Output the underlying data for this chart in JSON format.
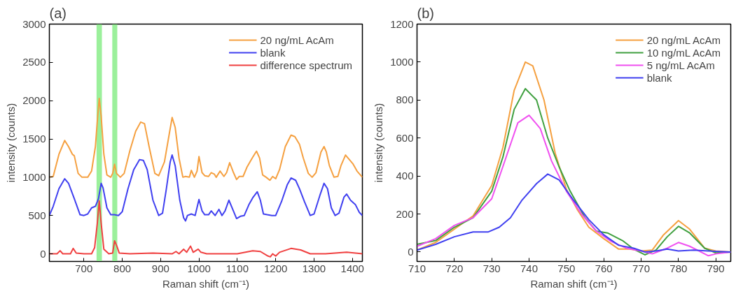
{
  "chart_data": [
    {
      "type": "line",
      "title": "(a)",
      "xlabel": "Raman shift (cm⁻¹)",
      "ylabel": "intensity (counts)",
      "xlim": [
        610,
        1426
      ],
      "ylim": [
        -100,
        3000
      ],
      "xticks": [
        700,
        800,
        900,
        1000,
        1100,
        1200,
        1300,
        1400
      ],
      "yticks": [
        0,
        500,
        1000,
        1500,
        2000,
        2500,
        3000
      ],
      "grid": false,
      "legend": "top right",
      "line_style": "solid",
      "marker": "none",
      "bands": [
        {
          "axis": "x",
          "from": 733,
          "to": 747,
          "label": null,
          "color": "#90ee90"
        },
        {
          "axis": "x",
          "from": 774,
          "to": 787,
          "label": null,
          "color": "#90ee90"
        }
      ],
      "series": [
        {
          "name": "20 ng/mL AcAm",
          "color": "#f5a040",
          "x": [
            610,
            620,
            635,
            650,
            660,
            670,
            675,
            685,
            695,
            710,
            720,
            730,
            736,
            740,
            745,
            752,
            760,
            770,
            775,
            780,
            785,
            795,
            805,
            820,
            835,
            848,
            858,
            870,
            885,
            895,
            910,
            922,
            930,
            938,
            948,
            958,
            965,
            975,
            980,
            988,
            995,
            1000,
            1008,
            1015,
            1025,
            1032,
            1040,
            1045,
            1055,
            1065,
            1072,
            1080,
            1090,
            1098,
            1105,
            1115,
            1125,
            1140,
            1150,
            1158,
            1166,
            1175,
            1185,
            1192,
            1200,
            1210,
            1225,
            1240,
            1250,
            1262,
            1272,
            1285,
            1295,
            1305,
            1318,
            1326,
            1332,
            1340,
            1352,
            1362,
            1370,
            1382,
            1392,
            1402,
            1412,
            1426
          ],
          "values": [
            1000,
            1010,
            1300,
            1480,
            1400,
            1300,
            1280,
            1050,
            1000,
            1000,
            1080,
            1400,
            1800,
            2030,
            1800,
            1300,
            1030,
            1000,
            1050,
            1170,
            1050,
            1000,
            1050,
            1350,
            1600,
            1720,
            1700,
            1400,
            1050,
            1020,
            1200,
            1550,
            1780,
            1650,
            1250,
            1000,
            1010,
            1000,
            1090,
            1000,
            1080,
            1270,
            1060,
            1020,
            1010,
            1060,
            1040,
            1000,
            1080,
            1010,
            1060,
            1190,
            1060,
            970,
            1010,
            1010,
            1130,
            1260,
            1340,
            1250,
            1030,
            1000,
            960,
            1010,
            980,
            1100,
            1400,
            1550,
            1530,
            1430,
            1250,
            1050,
            1000,
            1060,
            1330,
            1400,
            1330,
            1150,
            1000,
            1010,
            1150,
            1290,
            1230,
            1170,
            1080,
            1000
          ]
        },
        {
          "name": "blank",
          "color": "#4040f0",
          "x": [
            610,
            620,
            635,
            650,
            660,
            675,
            690,
            700,
            710,
            720,
            730,
            738,
            745,
            750,
            760,
            770,
            780,
            790,
            800,
            815,
            830,
            845,
            855,
            865,
            880,
            895,
            905,
            915,
            925,
            930,
            938,
            950,
            960,
            965,
            970,
            980,
            990,
            1000,
            1008,
            1015,
            1025,
            1032,
            1042,
            1052,
            1060,
            1068,
            1078,
            1088,
            1098,
            1108,
            1118,
            1130,
            1140,
            1152,
            1160,
            1168,
            1178,
            1190,
            1200,
            1215,
            1230,
            1240,
            1252,
            1262,
            1275,
            1290,
            1300,
            1315,
            1326,
            1335,
            1345,
            1355,
            1365,
            1378,
            1385,
            1395,
            1408,
            1418,
            1426
          ],
          "values": [
            500,
            620,
            850,
            980,
            920,
            720,
            510,
            500,
            520,
            600,
            620,
            720,
            920,
            860,
            600,
            510,
            510,
            500,
            550,
            850,
            1100,
            1230,
            1220,
            1100,
            700,
            500,
            530,
            850,
            1200,
            1290,
            1150,
            700,
            470,
            430,
            500,
            520,
            500,
            710,
            560,
            510,
            510,
            560,
            500,
            580,
            500,
            560,
            700,
            580,
            460,
            490,
            500,
            640,
            730,
            810,
            700,
            520,
            510,
            500,
            500,
            680,
            900,
            990,
            960,
            850,
            680,
            500,
            520,
            760,
            920,
            850,
            600,
            500,
            530,
            740,
            780,
            700,
            640,
            540,
            500
          ]
        },
        {
          "name": "difference spectrum",
          "color": "#f04040",
          "x": [
            610,
            630,
            638,
            645,
            665,
            672,
            680,
            700,
            720,
            728,
            735,
            740,
            745,
            752,
            765,
            775,
            780,
            786,
            792,
            820,
            880,
            930,
            940,
            948,
            960,
            968,
            978,
            985,
            998,
            1005,
            1020,
            1100,
            1140,
            1160,
            1180,
            1186,
            1192,
            1200,
            1210,
            1240,
            1265,
            1290,
            1330,
            1385,
            1426
          ],
          "values": [
            0,
            0,
            40,
            0,
            0,
            70,
            10,
            0,
            0,
            80,
            400,
            690,
            400,
            60,
            0,
            10,
            170,
            100,
            10,
            0,
            10,
            0,
            30,
            0,
            60,
            20,
            100,
            20,
            60,
            20,
            0,
            0,
            40,
            30,
            -30,
            -40,
            0,
            -30,
            20,
            70,
            50,
            0,
            0,
            20,
            0
          ]
        }
      ]
    },
    {
      "type": "line",
      "title": "(b)",
      "xlabel": "Raman shift (cm⁻¹)",
      "ylabel": "intensity (counts)",
      "xlim": [
        710,
        794
      ],
      "ylim": [
        -50,
        1200
      ],
      "xticks": [
        710,
        720,
        730,
        740,
        750,
        760,
        770,
        780,
        790
      ],
      "yticks": [
        0,
        200,
        400,
        600,
        800,
        1000,
        1200
      ],
      "grid": false,
      "legend": "top right",
      "line_style": "solid",
      "marker": "none",
      "series": [
        {
          "name": "20 ng/mL AcAm",
          "color": "#f5a040",
          "x": [
            710,
            715,
            720,
            725,
            730,
            733,
            736,
            739,
            741,
            744,
            747,
            750,
            753,
            756,
            760,
            764,
            767,
            770,
            773,
            776,
            780,
            783,
            787,
            790,
            794
          ],
          "values": [
            10,
            50,
            120,
            190,
            350,
            550,
            850,
            1000,
            980,
            800,
            520,
            330,
            220,
            130,
            70,
            15,
            15,
            5,
            10,
            90,
            165,
            120,
            20,
            5,
            0
          ]
        },
        {
          "name": "10 ng/mL AcAm",
          "color": "#40a040",
          "x": [
            710,
            715,
            720,
            725,
            730,
            733,
            736,
            739,
            742,
            745,
            748,
            751,
            755,
            758,
            761,
            765,
            768,
            771,
            774,
            777,
            780,
            783,
            787,
            790,
            794
          ],
          "values": [
            40,
            60,
            130,
            180,
            320,
            500,
            750,
            860,
            800,
            600,
            450,
            320,
            180,
            110,
            100,
            60,
            15,
            -15,
            10,
            80,
            135,
            100,
            20,
            -5,
            0
          ]
        },
        {
          "name": "5 ng/mL AcAm",
          "color": "#f050f0",
          "x": [
            710,
            715,
            720,
            725,
            730,
            733,
            737,
            740,
            743,
            746,
            750,
            754,
            758,
            762,
            766,
            770,
            773,
            777,
            780,
            783,
            786,
            788,
            790,
            794
          ],
          "values": [
            30,
            70,
            140,
            180,
            280,
            450,
            680,
            720,
            650,
            480,
            320,
            200,
            110,
            55,
            20,
            5,
            -10,
            20,
            50,
            30,
            0,
            -20,
            -10,
            0
          ]
        },
        {
          "name": "blank",
          "color": "#4040f0",
          "x": [
            710,
            715,
            720,
            725,
            729,
            732,
            735,
            738,
            742,
            745,
            748,
            752,
            756,
            760,
            764,
            768,
            771,
            774,
            777,
            780,
            784,
            788,
            794
          ],
          "values": [
            10,
            40,
            80,
            105,
            105,
            130,
            180,
            270,
            360,
            410,
            380,
            270,
            170,
            90,
            35,
            20,
            0,
            5,
            15,
            5,
            10,
            5,
            0
          ]
        }
      ]
    }
  ]
}
